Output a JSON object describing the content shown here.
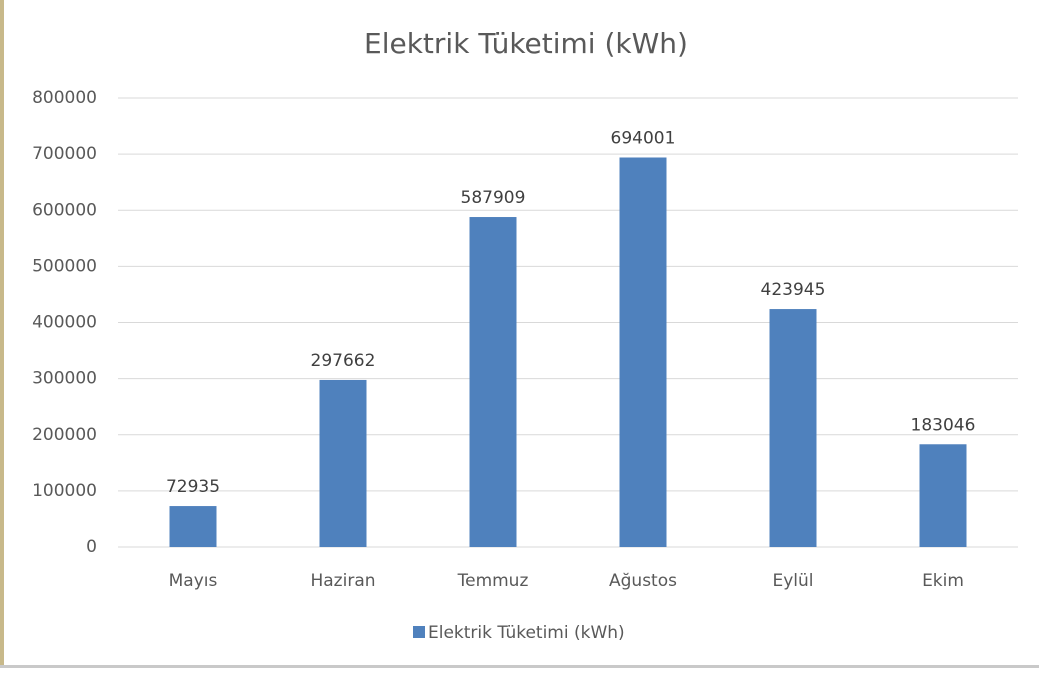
{
  "chart_data": {
    "type": "bar",
    "title": "Elektrik Tüketimi (kWh)",
    "categories": [
      "Mayıs",
      "Haziran",
      "Temmuz",
      "Ağustos",
      "Eylül",
      "Ekim"
    ],
    "series": [
      {
        "name": "Elektrik Tüketimi (kWh)",
        "color": "#4f81bd",
        "values": [
          72935,
          297662,
          587909,
          694001,
          423945,
          183046
        ]
      }
    ],
    "ylim": [
      0,
      800000
    ],
    "yticks": [
      0,
      100000,
      200000,
      300000,
      400000,
      500000,
      600000,
      700000,
      800000
    ],
    "grid": true,
    "legend": "bottom",
    "data_labels": true
  }
}
